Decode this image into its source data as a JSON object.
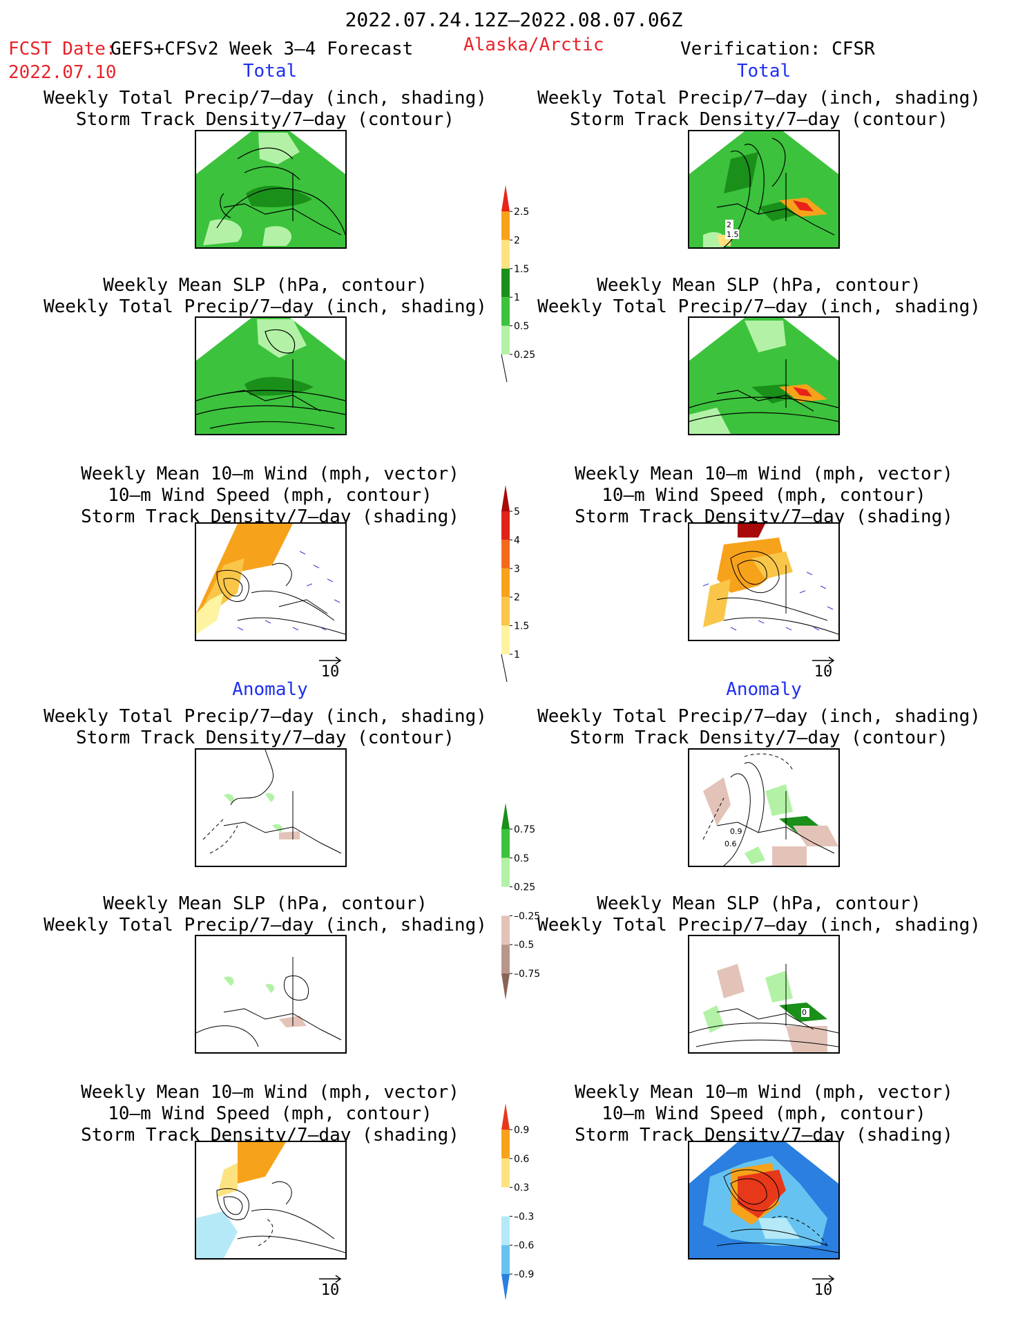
{
  "header": {
    "date_range": "2022.07.24.12Z–2022.08.07.06Z",
    "fcst_label": "FCST Date:",
    "fcst_model": "GEFS+CFSv2 Week 3–4 Forecast",
    "fcst_date": "2022.07.10",
    "region": "Alaska/Arctic",
    "verification": "Verification: CFSR"
  },
  "sections": {
    "total_left": "Total",
    "total_right": "Total",
    "anomaly_left": "Anomaly",
    "anomaly_right": "Anomaly"
  },
  "titles": {
    "precip_storm_1": "Weekly Total Precip/7–day (inch, shading)",
    "precip_storm_2": "Storm Track Density/7–day (contour)",
    "slp_1": "Weekly Mean SLP (hPa, contour)",
    "slp_2": "Weekly Total Precip/7–day (inch, shading)",
    "wind_1": "Weekly Mean 10–m Wind (mph, vector)",
    "wind_2": "10–m Wind Speed (mph, contour)",
    "wind_3": "Storm Track Density/7–day (shading)"
  },
  "vector_ref": "10",
  "colorbars": {
    "precip_total": {
      "labels": [
        "2.5",
        "2",
        "1.5",
        "1",
        "0.5",
        "0.25"
      ],
      "colors": [
        "#e8231a",
        "#f7a21b",
        "#fde280",
        "#1a8f1a",
        "#3cc23c",
        "#b3f2a6"
      ]
    },
    "storm_total": {
      "labels": [
        "5",
        "4",
        "3",
        "2",
        "1.5",
        "1"
      ],
      "colors": [
        "#a80a0a",
        "#e0231a",
        "#f36b1a",
        "#f7a21b",
        "#f9c64a",
        "#fdf3a0"
      ]
    },
    "precip_anom": {
      "labels": [
        "0.75",
        "0.5",
        "0.25",
        "–0.25",
        "–0.5",
        "–0.75"
      ],
      "colors": [
        "#1a8f1a",
        "#3cc23c",
        "#b3f2a6",
        "#ffffff",
        "#e3c3b8",
        "#b8978a",
        "#8a6455"
      ]
    },
    "storm_anom": {
      "labels": [
        "0.9",
        "0.6",
        "0.3",
        "–0.3",
        "–0.6",
        "–0.9"
      ],
      "colors": [
        "#e8381a",
        "#f7a21b",
        "#fde280",
        "#ffffff",
        "#b5e9f7",
        "#66c3f1",
        "#2a7fe0"
      ]
    }
  },
  "contour_labels": {
    "fcst_track_a": "2",
    "fcst_track_b": "1.5",
    "anom_track_a": "0.9",
    "anom_track_b": "0.6",
    "anom_slp": "0"
  }
}
